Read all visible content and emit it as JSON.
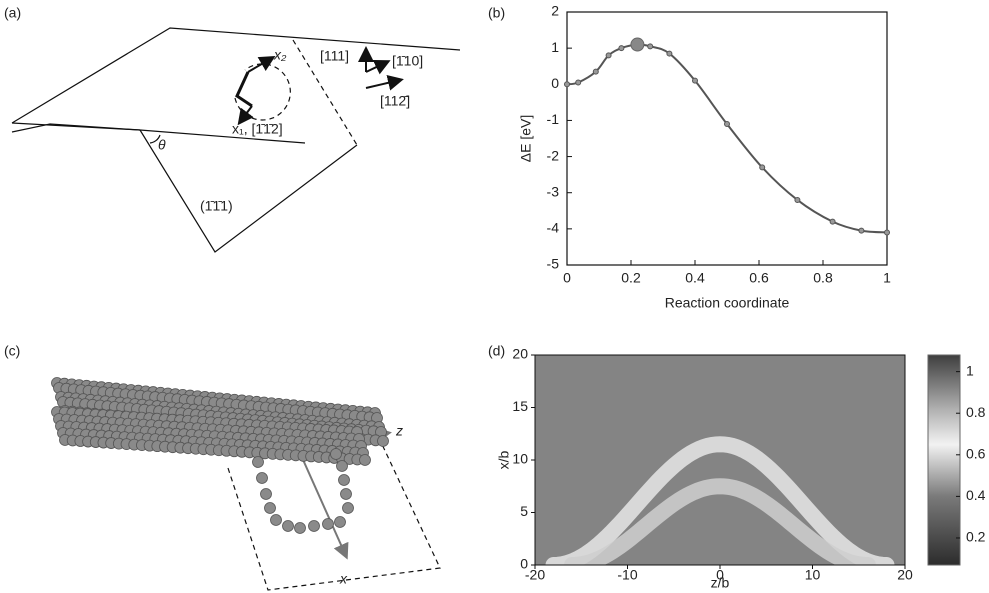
{
  "panels": [
    "(a)",
    "(b)",
    "(c)",
    "(d)"
  ],
  "diagram_a": {
    "x2": "x₂",
    "x1": "x₁, [1̄1̄2]",
    "dir_111": "[111]",
    "dir_110": "[1̄10]",
    "dir_112": "[112̄]",
    "angle": "θ",
    "plane": "(1̄1̄1)"
  },
  "diagram_c": {
    "z": "z",
    "x": "x"
  },
  "chart_data": [
    {
      "type": "line",
      "xlabel": "Reaction coordinate",
      "ylabel": "ΔE [eV]",
      "x": [
        0,
        0.035,
        0.09,
        0.13,
        0.17,
        0.22,
        0.26,
        0.32,
        0.4,
        0.5,
        0.61,
        0.72,
        0.83,
        0.92,
        1
      ],
      "values": [
        0,
        0.05,
        0.35,
        0.8,
        1.0,
        1.1,
        1.05,
        0.85,
        0.1,
        -1.1,
        -2.3,
        -3.2,
        -3.8,
        -4.05,
        -4.1
      ],
      "highlight": {
        "x": 0.22,
        "y": 1.1
      },
      "color": "#555555",
      "xlim": [
        0,
        1
      ],
      "ylim": [
        -5,
        2
      ],
      "xticks": [
        0,
        0.2,
        0.4,
        0.6,
        0.8,
        1
      ],
      "yticks": [
        -5,
        -4,
        -3,
        -2,
        -1,
        0,
        1,
        2
      ]
    },
    {
      "type": "heatmap",
      "xlabel": "z/b",
      "ylabel": "x/b",
      "xlim": [
        -20,
        20
      ],
      "ylim": [
        0,
        20
      ],
      "xticks": [
        -20,
        -10,
        0,
        10,
        20
      ],
      "yticks": [
        0,
        5,
        10,
        15,
        20
      ],
      "background_value": 0.42,
      "ridges": [
        {
          "peak": 11.5,
          "half_width": 18,
          "value": 0.68
        },
        {
          "peak": 7.5,
          "half_width": 16,
          "value": 0.74
        }
      ],
      "clim": [
        0.07,
        1.08
      ],
      "cticks": [
        0.2,
        0.4,
        0.6,
        0.8,
        1
      ],
      "colormap": [
        [
          0.07,
          "#2c2c2c"
        ],
        [
          0.4,
          "#7a7a7a"
        ],
        [
          0.65,
          "#f2f2f2"
        ],
        [
          0.82,
          "#b0b0b0"
        ],
        [
          1.08,
          "#3e3e3e"
        ]
      ]
    }
  ]
}
